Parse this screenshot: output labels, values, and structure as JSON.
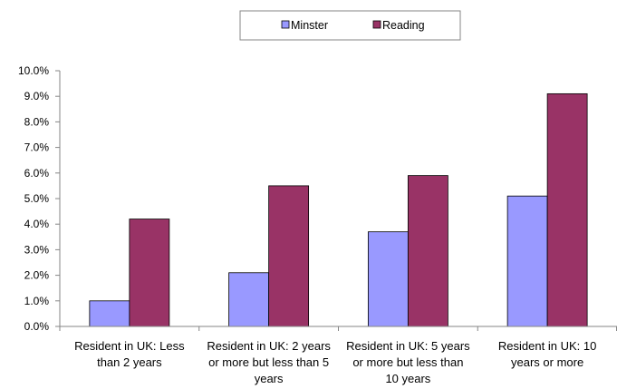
{
  "chart_data": {
    "type": "bar",
    "categories": [
      [
        "Resident in UK: Less",
        "than 2 years"
      ],
      [
        "Resident in UK: 2 years",
        "or more but less than 5",
        "years"
      ],
      [
        "Resident in UK: 5 years",
        "or more but less than",
        "10 years"
      ],
      [
        "Resident in UK: 10",
        "years or more"
      ]
    ],
    "series": [
      {
        "name": "Minster",
        "values": [
          0.01,
          0.021,
          0.037,
          0.051
        ]
      },
      {
        "name": "Reading",
        "values": [
          0.042,
          0.055,
          0.059,
          0.091
        ]
      }
    ],
    "ylim": [
      0,
      0.1
    ],
    "yticks": [
      "0.0%",
      "1.0%",
      "2.0%",
      "3.0%",
      "4.0%",
      "5.0%",
      "6.0%",
      "7.0%",
      "8.0%",
      "9.0%",
      "10.0%"
    ],
    "grid": false,
    "legend_position": "top"
  },
  "colors": {
    "minster": "#9999ff",
    "reading": "#993366",
    "axis": "#868686"
  }
}
